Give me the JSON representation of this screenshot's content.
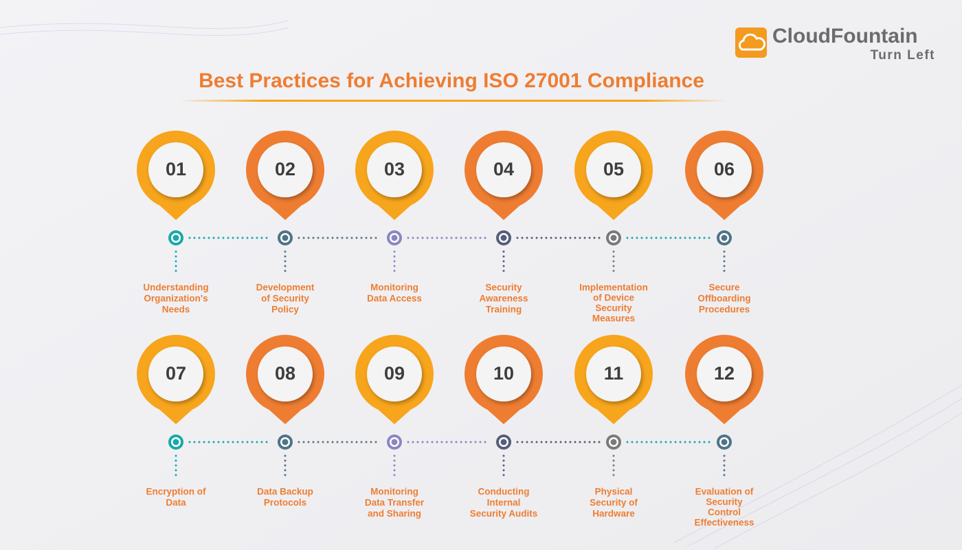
{
  "header": {
    "title": "Best Practices for Achieving ISO 27001 Compliance"
  },
  "logo": {
    "name": "CloudFountain",
    "tagline": "Turn Left"
  },
  "steps": [
    {
      "number": "01",
      "lines": [
        "Understanding",
        "Organization's",
        "Needs"
      ]
    },
    {
      "number": "02",
      "lines": [
        "Development",
        "of Security",
        "Policy"
      ]
    },
    {
      "number": "03",
      "lines": [
        "Monitoring",
        "Data Access"
      ]
    },
    {
      "number": "04",
      "lines": [
        "Security",
        "Awareness",
        "Training"
      ]
    },
    {
      "number": "05",
      "lines": [
        "Implementation",
        "of Device",
        "Security",
        "Measures"
      ]
    },
    {
      "number": "06",
      "lines": [
        "Secure",
        "Offboarding",
        "Procedures"
      ]
    },
    {
      "number": "07",
      "lines": [
        "Encryption of",
        "Data"
      ]
    },
    {
      "number": "08",
      "lines": [
        "Data Backup",
        "Protocols"
      ]
    },
    {
      "number": "09",
      "lines": [
        "Monitoring",
        "Data Transfer",
        "and Sharing"
      ]
    },
    {
      "number": "10",
      "lines": [
        "Conducting",
        "Internal",
        "Security Audits"
      ]
    },
    {
      "number": "11",
      "lines": [
        "Physical",
        "Security of",
        "Hardware"
      ]
    },
    {
      "number": "12",
      "lines": [
        "Evaluation of",
        "Security",
        "Control",
        "Effectiveness"
      ]
    }
  ]
}
